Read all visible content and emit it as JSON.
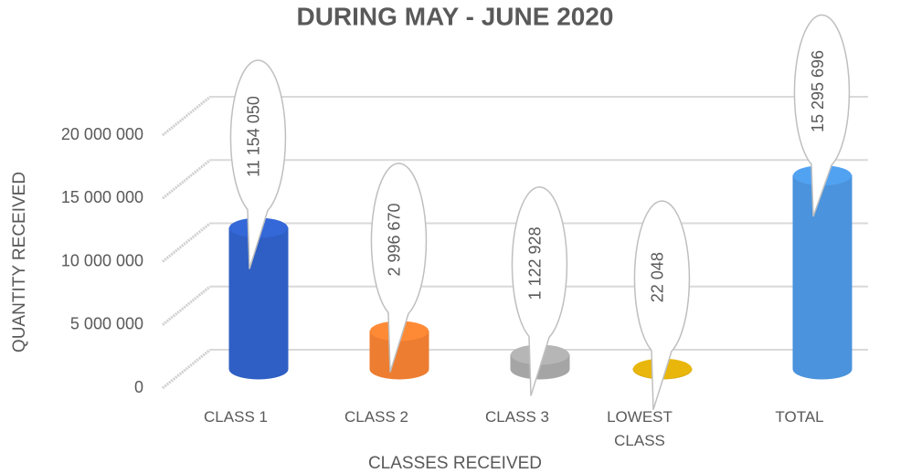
{
  "chart_data": {
    "type": "bar3d",
    "title": "DURING MAY - JUNE 2020",
    "x_label": "CLASSES RECEIVED",
    "y_label": "QUANTITY RECEIVED",
    "categories": [
      "CLASS 1",
      "CLASS 2",
      "CLASS 3",
      "LOWEST CLASS",
      "TOTAL"
    ],
    "values": [
      11154050,
      2996670,
      1122928,
      22048,
      15295696
    ],
    "value_labels": [
      "11 154 050",
      "2 996 670",
      "1 122 928",
      "22 048",
      "15 295 696"
    ],
    "colors": [
      "#2f5fc4",
      "#ed7d31",
      "#a5a5a5",
      "#d4a50a",
      "#4b93dc"
    ],
    "ylim": [
      0,
      20000000
    ],
    "yticks": [
      0,
      {
        "value": 5000000,
        "label": "5 000 000"
      },
      {
        "value": 10000000,
        "label": "10 000 000"
      },
      {
        "value": 15000000,
        "label": "15 000 000"
      },
      {
        "value": 20000000,
        "label": "20 000 000"
      }
    ],
    "grid": true
  }
}
